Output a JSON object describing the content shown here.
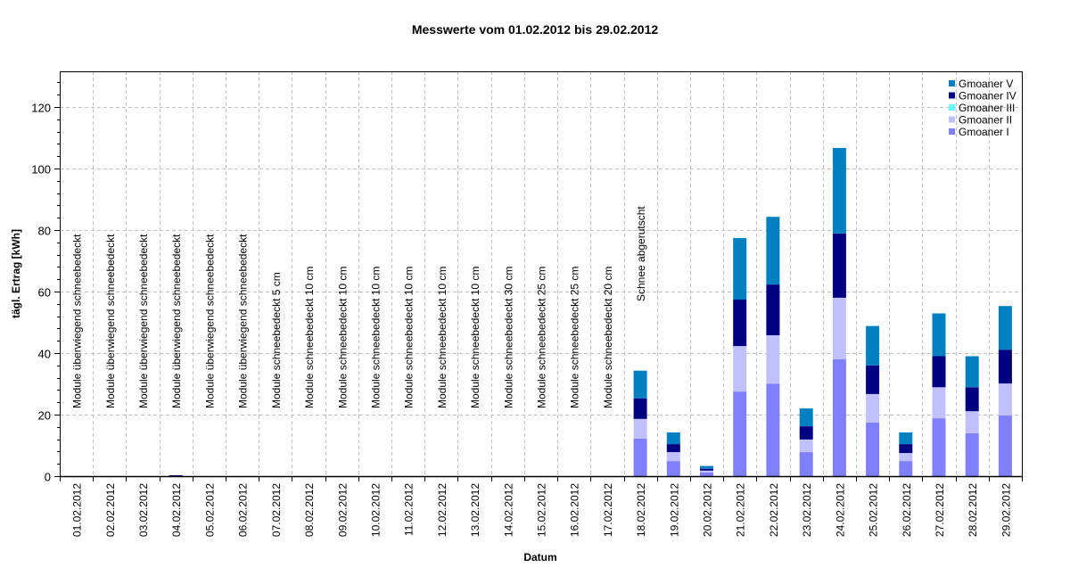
{
  "chart_data": {
    "type": "bar",
    "stacked": true,
    "title": "Messwerte vom 01.02.2012 bis 29.02.2012",
    "xlabel": "Datum",
    "ylabel": "tägl. Ertrag [kWh]",
    "ylim": [
      0,
      131.6
    ],
    "yticks": [
      0,
      20,
      40,
      60,
      80,
      100,
      120
    ],
    "y_minor_step": 4,
    "grid": true,
    "legend_position": "top-right-inside",
    "categories": [
      "01.02.2012",
      "02.02.2012",
      "03.02.2012",
      "04.02.2012",
      "05.02.2012",
      "06.02.2012",
      "07.02.2012",
      "08.02.2012",
      "09.02.2012",
      "10.02.2012",
      "11.02.2012",
      "12.02.2012",
      "13.02.2012",
      "14.02.2012",
      "15.02.2012",
      "16.02.2012",
      "17.02.2012",
      "18.02.2012",
      "19.02.2012",
      "20.02.2012",
      "21.02.2012",
      "22.02.2012",
      "23.02.2012",
      "24.02.2012",
      "25.02.2012",
      "26.02.2012",
      "27.02.2012",
      "28.02.2012",
      "29.02.2012"
    ],
    "series": [
      {
        "name": "Gmoaner I",
        "color": "#8080ff",
        "values": [
          0,
          0,
          0,
          0,
          0,
          0,
          0,
          0,
          0,
          0,
          0,
          0,
          0,
          0,
          0,
          0,
          0,
          12.2,
          4.9,
          1.2,
          27.5,
          30.1,
          7.8,
          38.0,
          17.4,
          4.9,
          18.8,
          13.9,
          19.7
        ]
      },
      {
        "name": "Gmoaner II",
        "color": "#c0c0ff",
        "values": [
          0,
          0,
          0,
          0,
          0,
          0,
          0,
          0,
          0,
          0,
          0,
          0,
          0,
          0,
          0,
          0,
          0,
          6.4,
          2.9,
          0.6,
          14.8,
          15.7,
          4.1,
          20.0,
          9.3,
          2.6,
          10.1,
          7.2,
          10.4
        ]
      },
      {
        "name": "Gmoaner III",
        "color": "#66ffff",
        "values": [
          0,
          0,
          0,
          0,
          0,
          0,
          0,
          0,
          0,
          0,
          0,
          0,
          0,
          0,
          0,
          0,
          0,
          0,
          0,
          0,
          0,
          0,
          0,
          0,
          0,
          0,
          0,
          0,
          0
        ]
      },
      {
        "name": "Gmoaner IV",
        "color": "#000080",
        "values": [
          0,
          0,
          0,
          0.3,
          0,
          0,
          0,
          0,
          0,
          0,
          0,
          0,
          0,
          0,
          0,
          0,
          0,
          6.7,
          2.6,
          0.6,
          15.1,
          16.5,
          4.3,
          20.9,
          9.3,
          2.9,
          10.1,
          7.8,
          11.0
        ]
      },
      {
        "name": "Gmoaner V",
        "color": "#0080c0",
        "values": [
          0,
          0,
          0,
          0,
          0,
          0,
          0,
          0,
          0,
          0,
          0,
          0,
          0,
          0,
          0,
          0,
          0,
          9.0,
          3.8,
          0.9,
          20.0,
          22.0,
          5.8,
          27.8,
          12.8,
          3.8,
          13.9,
          10.1,
          14.2
        ]
      }
    ],
    "legend_order": [
      "Gmoaner V",
      "Gmoaner IV",
      "Gmoaner III",
      "Gmoaner II",
      "Gmoaner I"
    ],
    "annotations": [
      {
        "index": 0,
        "text": "Module überwiegend schneebedeckt"
      },
      {
        "index": 1,
        "text": "Module überwiegend schneebedeckt"
      },
      {
        "index": 2,
        "text": "Module überwiegend schneebedeckt"
      },
      {
        "index": 3,
        "text": "Module überwiegend schneebedeckt"
      },
      {
        "index": 4,
        "text": "Module überwiegend schneebedeckt"
      },
      {
        "index": 5,
        "text": "Module überwiegend schneebedeckt"
      },
      {
        "index": 6,
        "text": "Module schneebedeckt 5 cm"
      },
      {
        "index": 7,
        "text": "Module schneebedeckt 10 cm"
      },
      {
        "index": 8,
        "text": "Module schneebedeckt 10 cm"
      },
      {
        "index": 9,
        "text": "Module schneebedeckt 10 cm"
      },
      {
        "index": 10,
        "text": "Module schneebedeckt 10 cm"
      },
      {
        "index": 11,
        "text": "Module schneebedeckt 10 cm"
      },
      {
        "index": 12,
        "text": "Module schneebedeckt 10 cm"
      },
      {
        "index": 13,
        "text": "Module schneebedeckt 30 cm"
      },
      {
        "index": 14,
        "text": "Module schneebedeckt 25 cm"
      },
      {
        "index": 15,
        "text": "Module schneebedeckt 25 cm"
      },
      {
        "index": 16,
        "text": "Module schneebedeckt 20 cm"
      },
      {
        "index": 17,
        "text": "Schnee abgerutscht",
        "elevated": true
      }
    ]
  }
}
